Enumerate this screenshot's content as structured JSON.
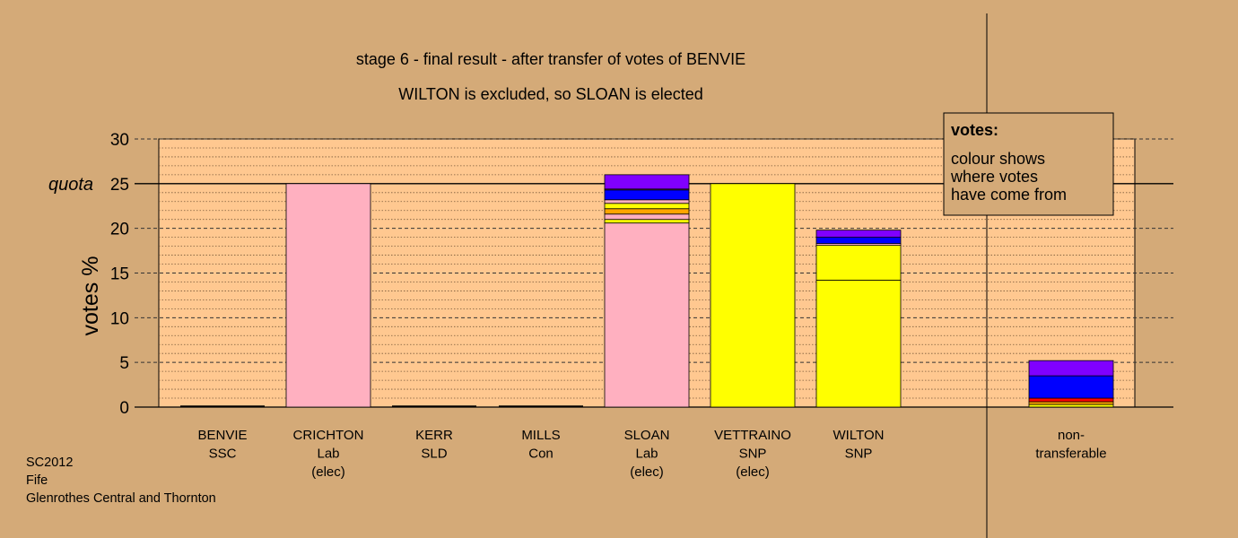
{
  "chart_data": {
    "type": "bar",
    "stacked": true,
    "title": "stage 6 - final result - after transfer of votes of BENVIE",
    "subtitle": "WILTON is excluded, so SLOAN is elected",
    "ylabel": "votes %",
    "ylim": [
      0,
      30
    ],
    "yticks": [
      0,
      5,
      10,
      15,
      20,
      25,
      30
    ],
    "quota": 25,
    "quota_label": "quota",
    "grid": true,
    "legend": {
      "placement": "top-right",
      "title": "votes:",
      "lines": [
        "colour shows",
        "where votes",
        "have come from"
      ]
    },
    "candidates": [
      {
        "name": "BENVIE",
        "party": "SSC",
        "status": "",
        "segments": []
      },
      {
        "name": "CRICHTON",
        "party": "Lab",
        "status": "(elec)",
        "segments": [
          {
            "value": 25.0,
            "color": "#ffb0c0"
          }
        ]
      },
      {
        "name": "KERR",
        "party": "SLD",
        "status": "",
        "segments": []
      },
      {
        "name": "MILLS",
        "party": "Con",
        "status": "",
        "segments": []
      },
      {
        "name": "SLOAN",
        "party": "Lab",
        "status": "(elec)",
        "segments": [
          {
            "value": 20.6,
            "color": "#ffb0c0"
          },
          {
            "value": 0.4,
            "color": "#ffff00"
          },
          {
            "value": 0.6,
            "color": "#ffb0c0"
          },
          {
            "value": 0.6,
            "color": "#ffa500"
          },
          {
            "value": 0.6,
            "color": "#ffff00"
          },
          {
            "value": 0.4,
            "color": "#ffb0c0"
          },
          {
            "value": 1.1,
            "color": "#0000ff"
          },
          {
            "value": 0.1,
            "color": "#ffb0c0"
          },
          {
            "value": 1.6,
            "color": "#8000ff"
          }
        ]
      },
      {
        "name": "VETTRAINO",
        "party": "SNP",
        "status": "(elec)",
        "segments": [
          {
            "value": 25.0,
            "color": "#ffff00"
          }
        ]
      },
      {
        "name": "WILTON",
        "party": "SNP",
        "status": "",
        "segments": [
          {
            "value": 14.2,
            "color": "#ffff00"
          },
          {
            "value": 3.9,
            "color": "#ffff00"
          },
          {
            "value": 0.2,
            "color": "#ffb0c0"
          },
          {
            "value": 0.7,
            "color": "#0000ff"
          },
          {
            "value": 0.8,
            "color": "#8000ff"
          }
        ]
      }
    ],
    "nontransferable": {
      "label_lines": [
        "non-",
        "transferable"
      ],
      "segments": [
        {
          "value": 0.3,
          "color": "#ffff00"
        },
        {
          "value": 0.3,
          "color": "#ffa500"
        },
        {
          "value": 0.4,
          "color": "#ff0000"
        },
        {
          "value": 2.5,
          "color": "#0000ff"
        },
        {
          "value": 1.7,
          "color": "#8000ff"
        }
      ]
    }
  },
  "footer": {
    "line1": "SC2012",
    "line2": "Fife",
    "line3": "Glenrothes Central and Thornton"
  }
}
